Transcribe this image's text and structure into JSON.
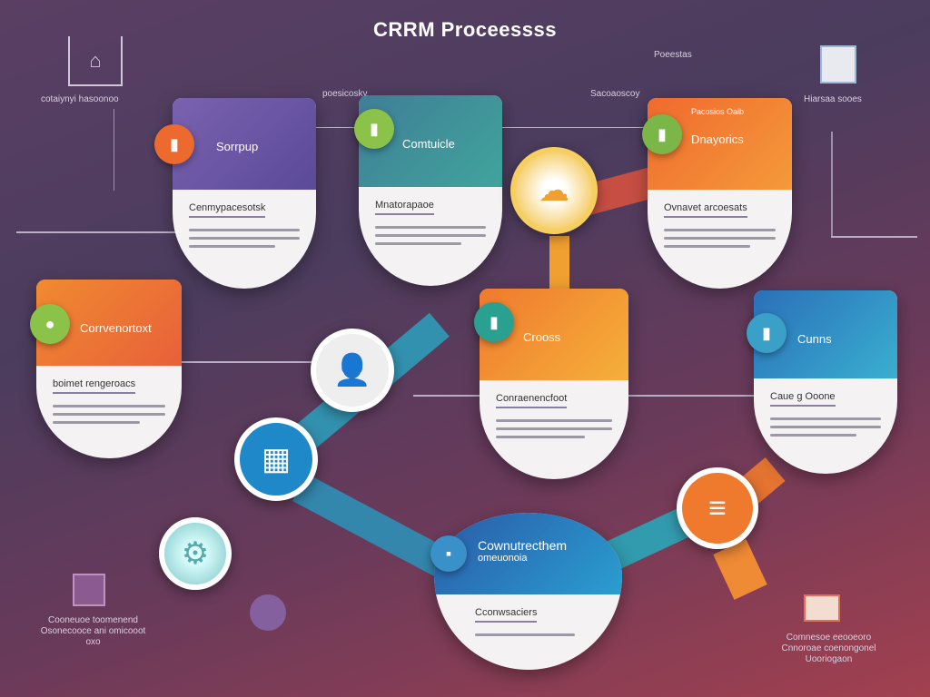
{
  "title": "CRRM Proceessss",
  "labels": {
    "top_left": "cotaiynyi hasoonoo",
    "top_mid": "poesicosky",
    "top_mid2": "Sacoaoscoy",
    "top_right_small": "Poeestas",
    "top_right": "Hiarsaa sooes",
    "bottom_left": [
      "Cooneuoe toomenend",
      "Osonecooce ani omicooot",
      "oxo"
    ],
    "bottom_right": [
      "Comnesoe eeooeoro",
      "Cnnoroae coenongonel",
      "Uooriogaon"
    ]
  },
  "cards": [
    {
      "head": "Sorrpup",
      "sub": "Cenmypacesotsk",
      "color": "#6a5aa8"
    },
    {
      "head": "Comtuicle",
      "sub": "Mnatorapaoe",
      "color": "#3f9a9a"
    },
    {
      "head": "Dnayorics",
      "head_small": "Pacosios Oaib",
      "sub": "Ovnavet arcoesats",
      "color": "#ef7a2e"
    },
    {
      "head": "Corrvenortoxt",
      "sub": "boimet rengeroacs",
      "color": "#ee7a30"
    },
    {
      "head": "Crooss",
      "sub": "Conraenencfoot",
      "color": "#f08a2e"
    },
    {
      "head": "Cunns",
      "sub": "Caue g Ooone",
      "color": "#2c86c4"
    },
    {
      "head": "Cownutrecthem",
      "head_small": "omeuonoia",
      "sub": "Cconwsaciers",
      "color": "#2a6bb8"
    }
  ],
  "icons": [
    "house-icon",
    "monitor-icon",
    "person-icon",
    "calendar-icon",
    "document-icon",
    "cloud-icon",
    "gear-icon",
    "chat-icon"
  ]
}
